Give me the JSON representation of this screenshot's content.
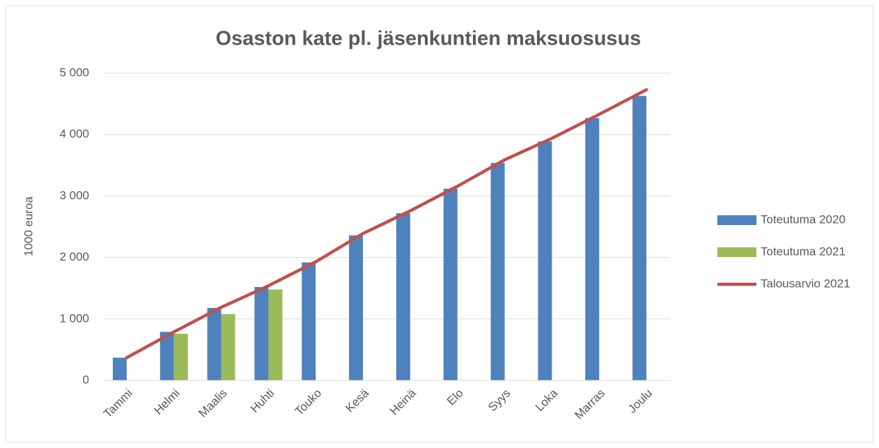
{
  "chart_data": {
    "type": "bar",
    "title": "Osaston kate pl. jäsenkuntien maksuosusus",
    "y_label": "1000 euroa",
    "categories": [
      "Tammi",
      "Helmi",
      "Maalis",
      "Huhti",
      "Touko",
      "Kesä",
      "Heinä",
      "Elo",
      "Syys",
      "Loka",
      "Marras",
      "Joulu"
    ],
    "series": [
      {
        "name": "Toteutuma 2020",
        "type": "bar",
        "color": "#4f81bd",
        "values": [
          370,
          790,
          1180,
          1520,
          1920,
          2360,
          2720,
          3120,
          3540,
          3890,
          4270,
          4630
        ]
      },
      {
        "name": "Toteutuma 2021",
        "type": "bar",
        "color": "#9bbb59",
        "values": [
          null,
          760,
          1080,
          1480,
          null,
          null,
          null,
          null,
          null,
          null,
          null,
          null
        ]
      },
      {
        "name": "Talousarvio 2021",
        "type": "line",
        "color": "#c0504d",
        "values": [
          370,
          790,
          1190,
          1540,
          1930,
          2390,
          2760,
          3160,
          3590,
          3940,
          4330,
          4730
        ]
      }
    ],
    "ylim": [
      0,
      5000
    ],
    "yticks": [
      0,
      {
        "value": 1000,
        "label": "1 000"
      },
      {
        "value": 2000,
        "label": "2 000"
      },
      {
        "value": 3000,
        "label": "3 000"
      },
      {
        "value": 4000,
        "label": "4 000"
      },
      {
        "value": 5000,
        "label": "5 000"
      }
    ],
    "grid": true,
    "legend": "right"
  }
}
